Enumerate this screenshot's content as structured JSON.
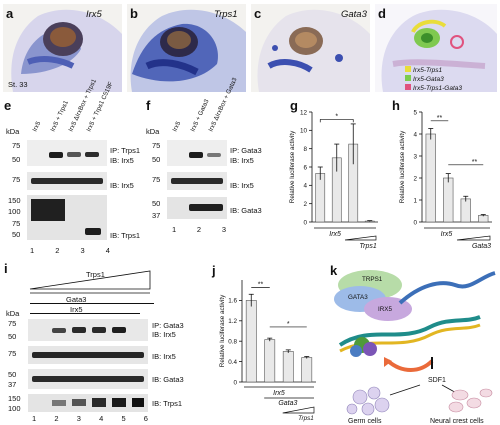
{
  "panel_a": {
    "letter": "a",
    "gene": "Irx5",
    "stage": "St. 33"
  },
  "panel_b": {
    "letter": "b",
    "gene": "Trps1"
  },
  "panel_c": {
    "letter": "c",
    "gene": "Gata3"
  },
  "panel_d": {
    "letter": "d",
    "legend": [
      {
        "label": "Irx5-Trps1",
        "color": "#e9dd3a"
      },
      {
        "label": "Irx5-Gata3",
        "color": "#7dcc4e"
      },
      {
        "label": "Irx5-Trps1-Gata3",
        "color": "#e0527e"
      }
    ]
  },
  "panel_e": {
    "letter": "e",
    "kda": "kDa",
    "lanes": [
      "Irx5",
      "Irx5 + Trps1",
      "Irx5 ΔIrxBox + Trps1",
      "Irx5 + Trps1 C519F"
    ],
    "lane_numbers": [
      "1",
      "2",
      "3",
      "4"
    ],
    "ip_label": "IP: Trps1",
    "ib_label1": "IB: Irx5",
    "ib_label2": "IB: Irx5",
    "ib_label3": "IB: Trps1",
    "markers_top": [
      "75",
      "50"
    ],
    "markers_mid": [
      "75"
    ],
    "markers_bot": [
      "150",
      "100",
      "75",
      "50"
    ]
  },
  "panel_f": {
    "letter": "f",
    "kda": "kDa",
    "lanes": [
      "Irx5",
      "Irx5 + Gata3",
      "Irx5 ΔIrxBox + Gata3"
    ],
    "lane_numbers": [
      "1",
      "2",
      "3"
    ],
    "ip_label": "IP: Gata3",
    "ib_label1": "IB: Irx5",
    "ib_label2": "IB: Irx5",
    "ib_label3": "IB: Gata3",
    "markers_top": [
      "75",
      "50"
    ],
    "markers_mid": [
      "75"
    ],
    "markers_bot": [
      "50",
      "37"
    ]
  },
  "panel_g": {
    "letter": "g",
    "sig": "*",
    "group1": "Irx5",
    "group2": "Trps1"
  },
  "panel_h": {
    "letter": "h",
    "sig1": "**",
    "sig2": "**",
    "group1": "Irx5",
    "group2": "Gata3"
  },
  "panel_i": {
    "letter": "i",
    "kda": "kDa",
    "trps1": "Trps1",
    "gata3": "Gata3",
    "irx5": "Irx5",
    "lane_numbers": [
      "1",
      "2",
      "3",
      "4",
      "5",
      "6"
    ],
    "ip_label": "IP: Gata3",
    "ib_label1": "IB: Irx5",
    "ib_label2": "IB: Irx5",
    "ib_label3": "IB: Gata3",
    "ib_label4": "IB: Trps1",
    "markers_top": [
      "75",
      "50"
    ],
    "markers_mid": [
      "75"
    ],
    "markers_gata": [
      "50",
      "37"
    ],
    "markers_trps": [
      "150",
      "100"
    ]
  },
  "panel_j": {
    "letter": "j",
    "sig1": "**",
    "sig2": "*",
    "group1": "Irx5",
    "group2": "Gata3",
    "group3": "Trps1"
  },
  "panel_k": {
    "letter": "k",
    "trps1": "TRPS1",
    "gata3": "GATA3",
    "irx5": "IRX5",
    "sdf1": "SDF1",
    "germ": "Germ cells",
    "ncc": "Neural crest cells"
  },
  "chart_data": [
    {
      "type": "bar",
      "id": "g",
      "ylabel": "Relative luciferase activity",
      "ylim": [
        0,
        12
      ],
      "yticks": [
        0,
        2,
        4,
        6,
        8,
        10,
        12
      ],
      "values": [
        5.3,
        7.0,
        8.5,
        0.1
      ],
      "errors": [
        0.7,
        1.5,
        2.2,
        0.05
      ]
    },
    {
      "type": "bar",
      "id": "h",
      "ylabel": "Relative luciferase activity",
      "ylim": [
        0,
        5
      ],
      "yticks": [
        0,
        1,
        2,
        3,
        4,
        5
      ],
      "values": [
        4.0,
        2.0,
        1.05,
        0.3
      ],
      "errors": [
        0.25,
        0.2,
        0.12,
        0.04
      ]
    },
    {
      "type": "bar",
      "id": "j",
      "ylabel": "Relative luciferase activity",
      "ylim": [
        0,
        2.0
      ],
      "yticks": [
        0,
        0.4,
        0.8,
        1.2,
        1.6
      ],
      "values": [
        1.6,
        0.83,
        0.6,
        0.48
      ],
      "errors": [
        0.12,
        0.03,
        0.03,
        0.02
      ]
    }
  ]
}
